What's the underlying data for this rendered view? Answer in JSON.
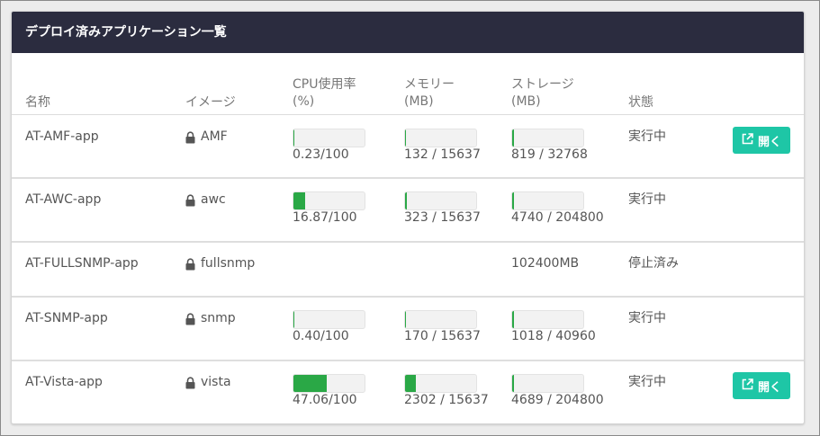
{
  "panel": {
    "title": "デプロイ済みアプリケーション一覧"
  },
  "columns": {
    "name": "名称",
    "image": "イメージ",
    "cpu_line1": "CPU使用率",
    "cpu_line2": "(%)",
    "mem_line1": "メモリー",
    "mem_line2": "(MB)",
    "storage_line1": "ストレージ",
    "storage_line2": "(MB)",
    "status": "状態"
  },
  "colors": {
    "header_bg": "#2b2c3f",
    "bar_fill": "#2aa846",
    "open_button": "#1ec6a6"
  },
  "rows": [
    {
      "name": "AT-AMF-app",
      "image": "AMF",
      "image_icon": "lock-icon",
      "cpu": {
        "label": "0.23/100",
        "fraction": 0.0023
      },
      "memory": {
        "label": "132 / 15637",
        "fraction": 0.0084
      },
      "storage": {
        "label": "819 / 32768",
        "fraction": 0.025
      },
      "status": "実行中",
      "open_label": "開く"
    },
    {
      "name": "AT-AWC-app",
      "image": "awc",
      "image_icon": "lock-icon",
      "cpu": {
        "label": "16.87/100",
        "fraction": 0.1687
      },
      "memory": {
        "label": "323 / 15637",
        "fraction": 0.0207
      },
      "storage": {
        "label": "4740 / 204800",
        "fraction": 0.0231
      },
      "status": "実行中"
    },
    {
      "name": "AT-FULLSNMP-app",
      "image": "fullsnmp",
      "image_icon": "lock-icon",
      "storage_text": "102400MB",
      "status": "停止済み"
    },
    {
      "name": "AT-SNMP-app",
      "image": "snmp",
      "image_icon": "lock-icon",
      "cpu": {
        "label": "0.40/100",
        "fraction": 0.004
      },
      "memory": {
        "label": "170 / 15637",
        "fraction": 0.0109
      },
      "storage": {
        "label": "1018 / 40960",
        "fraction": 0.0249
      },
      "status": "実行中"
    },
    {
      "name": "AT-Vista-app",
      "image": "vista",
      "image_icon": "lock-icon",
      "cpu": {
        "label": "47.06/100",
        "fraction": 0.4706
      },
      "memory": {
        "label": "2302 / 15637",
        "fraction": 0.1472
      },
      "storage": {
        "label": "4689 / 204800",
        "fraction": 0.0229
      },
      "status": "実行中",
      "open_label": "開く"
    }
  ]
}
